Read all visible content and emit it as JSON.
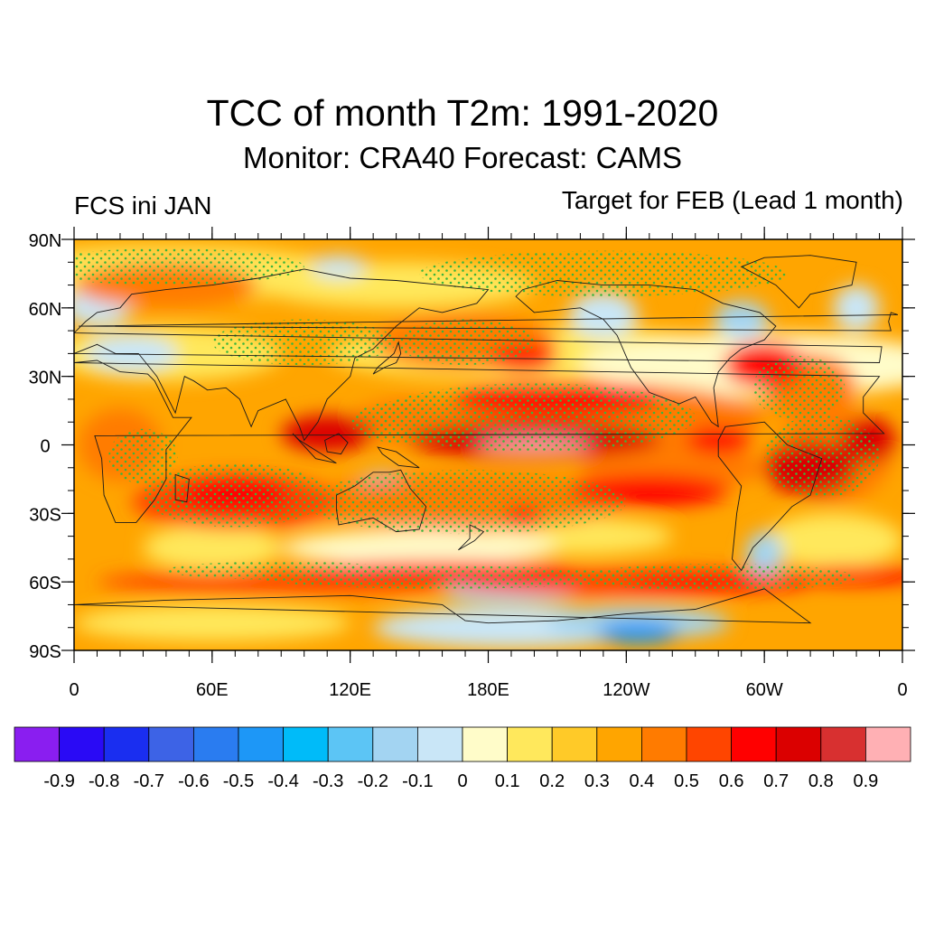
{
  "chart_data": {
    "type": "heatmap",
    "title": "TCC of month T2m: 1991-2020",
    "subtitle": "Monitor: CRA40   Forecast: CAMS",
    "left_label": "FCS ini JAN",
    "right_label": "Target for FEB (Lead 1 month)",
    "x_ticks": [
      "0",
      "60E",
      "120E",
      "180E",
      "120W",
      "60W",
      "0"
    ],
    "y_ticks": [
      "90N",
      "60N",
      "30N",
      "0",
      "30S",
      "60S",
      "90S"
    ],
    "x_range_deg": [
      0,
      360
    ],
    "y_range_deg": [
      90,
      -90
    ],
    "colorbar": {
      "labels": [
        "-0.9",
        "-0.8",
        "-0.7",
        "-0.6",
        "-0.5",
        "-0.4",
        "-0.3",
        "-0.2",
        "-0.1",
        "0",
        "0.1",
        "0.2",
        "0.3",
        "0.4",
        "0.5",
        "0.6",
        "0.7",
        "0.8",
        "0.9"
      ],
      "colors": [
        "#8A1EF0",
        "#2A0AF5",
        "#1A2EF0",
        "#3D63E6",
        "#2A7CF0",
        "#1D97F7",
        "#00BBF9",
        "#5CC5F5",
        "#A3D4F2",
        "#C9E6F7",
        "#FFFCC9",
        "#FFE85C",
        "#FFCA28",
        "#FFA500",
        "#FF7B00",
        "#FF4500",
        "#FF0000",
        "#DB0000",
        "#D83030",
        "#FFB0B4"
      ]
    },
    "significance_marker_color": "#3CB43C"
  }
}
